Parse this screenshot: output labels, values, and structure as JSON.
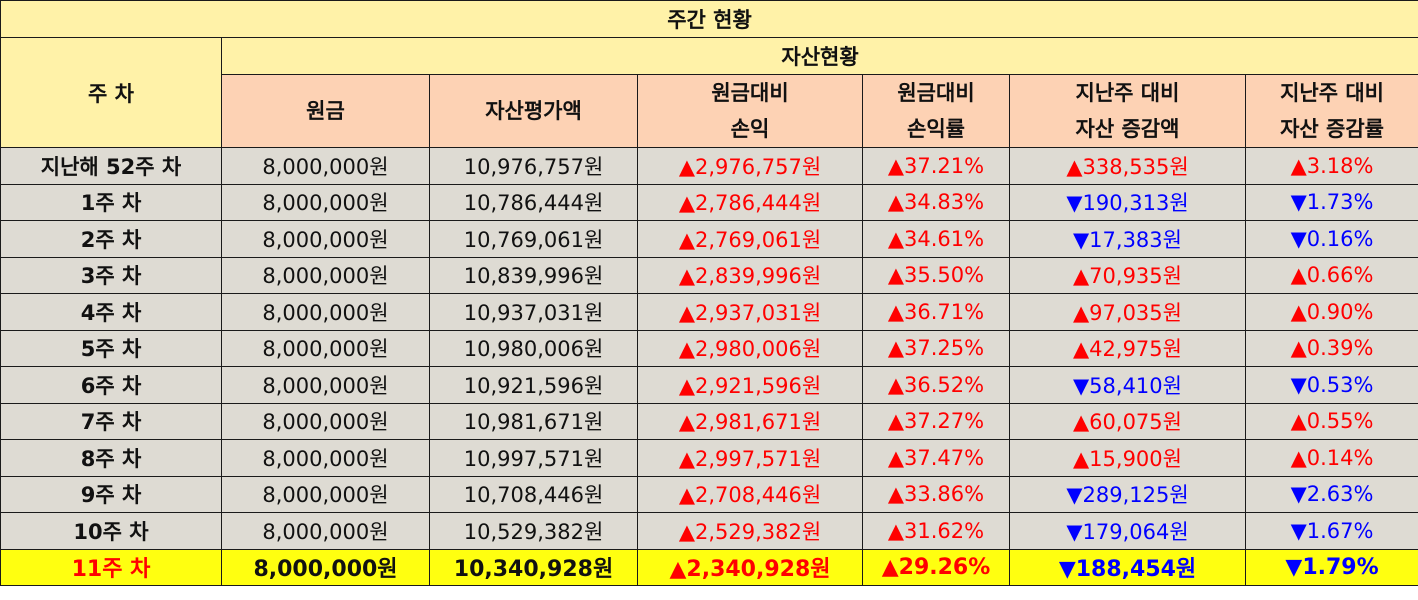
{
  "title": "주간 현황",
  "week_header": "주 차",
  "asset_header": "자산현황",
  "columns": [
    {
      "line1": "원금",
      "line2": ""
    },
    {
      "line1": "자산평가액",
      "line2": ""
    },
    {
      "line1": "원금대비",
      "line2": "손익"
    },
    {
      "line1": "원금대비",
      "line2": "손익률"
    },
    {
      "line1": "지난주 대비",
      "line2": "자산 증감액"
    },
    {
      "line1": "지난주 대비",
      "line2": "자산 증감률"
    }
  ],
  "colors": {
    "up": "#ff0000",
    "down": "#0000ff",
    "current_bg": "#ffff10",
    "header_bg": "#fff2a8",
    "subheader_bg": "#fdd2b4",
    "row_bg": "#dedbd3"
  },
  "rows": [
    {
      "week": "지난해 52주 차",
      "principal": "8,000,000원",
      "valuation": "10,976,757원",
      "pnl": "▲2,976,757원",
      "pnl_rate": "▲37.21%",
      "wow_amount": "▲338,535원",
      "wow_rate": "▲3.18%",
      "pnl_dir": "up",
      "wow_dir": "up"
    },
    {
      "week": "1주 차",
      "principal": "8,000,000원",
      "valuation": "10,786,444원",
      "pnl": "▲2,786,444원",
      "pnl_rate": "▲34.83%",
      "wow_amount": "▼190,313원",
      "wow_rate": "▼1.73%",
      "pnl_dir": "up",
      "wow_dir": "down"
    },
    {
      "week": "2주 차",
      "principal": "8,000,000원",
      "valuation": "10,769,061원",
      "pnl": "▲2,769,061원",
      "pnl_rate": "▲34.61%",
      "wow_amount": "▼17,383원",
      "wow_rate": "▼0.16%",
      "pnl_dir": "up",
      "wow_dir": "down"
    },
    {
      "week": "3주 차",
      "principal": "8,000,000원",
      "valuation": "10,839,996원",
      "pnl": "▲2,839,996원",
      "pnl_rate": "▲35.50%",
      "wow_amount": "▲70,935원",
      "wow_rate": "▲0.66%",
      "pnl_dir": "up",
      "wow_dir": "up"
    },
    {
      "week": "4주 차",
      "principal": "8,000,000원",
      "valuation": "10,937,031원",
      "pnl": "▲2,937,031원",
      "pnl_rate": "▲36.71%",
      "wow_amount": "▲97,035원",
      "wow_rate": "▲0.90%",
      "pnl_dir": "up",
      "wow_dir": "up"
    },
    {
      "week": "5주 차",
      "principal": "8,000,000원",
      "valuation": "10,980,006원",
      "pnl": "▲2,980,006원",
      "pnl_rate": "▲37.25%",
      "wow_amount": "▲42,975원",
      "wow_rate": "▲0.39%",
      "pnl_dir": "up",
      "wow_dir": "up"
    },
    {
      "week": "6주 차",
      "principal": "8,000,000원",
      "valuation": "10,921,596원",
      "pnl": "▲2,921,596원",
      "pnl_rate": "▲36.52%",
      "wow_amount": "▼58,410원",
      "wow_rate": "▼0.53%",
      "pnl_dir": "up",
      "wow_dir": "down"
    },
    {
      "week": "7주 차",
      "principal": "8,000,000원",
      "valuation": "10,981,671원",
      "pnl": "▲2,981,671원",
      "pnl_rate": "▲37.27%",
      "wow_amount": "▲60,075원",
      "wow_rate": "▲0.55%",
      "pnl_dir": "up",
      "wow_dir": "up"
    },
    {
      "week": "8주 차",
      "principal": "8,000,000원",
      "valuation": "10,997,571원",
      "pnl": "▲2,997,571원",
      "pnl_rate": "▲37.47%",
      "wow_amount": "▲15,900원",
      "wow_rate": "▲0.14%",
      "pnl_dir": "up",
      "wow_dir": "up"
    },
    {
      "week": "9주 차",
      "principal": "8,000,000원",
      "valuation": "10,708,446원",
      "pnl": "▲2,708,446원",
      "pnl_rate": "▲33.86%",
      "wow_amount": "▼289,125원",
      "wow_rate": "▼2.63%",
      "pnl_dir": "up",
      "wow_dir": "down"
    },
    {
      "week": "10주 차",
      "principal": "8,000,000원",
      "valuation": "10,529,382원",
      "pnl": "▲2,529,382원",
      "pnl_rate": "▲31.62%",
      "wow_amount": "▼179,064원",
      "wow_rate": "▼1.67%",
      "pnl_dir": "up",
      "wow_dir": "down"
    },
    {
      "week": "11주 차",
      "principal": "8,000,000원",
      "valuation": "10,340,928원",
      "pnl": "▲2,340,928원",
      "pnl_rate": "▲29.26%",
      "wow_amount": "▼188,454원",
      "wow_rate": "▼1.79%",
      "pnl_dir": "up",
      "wow_dir": "down",
      "current": true
    }
  ]
}
